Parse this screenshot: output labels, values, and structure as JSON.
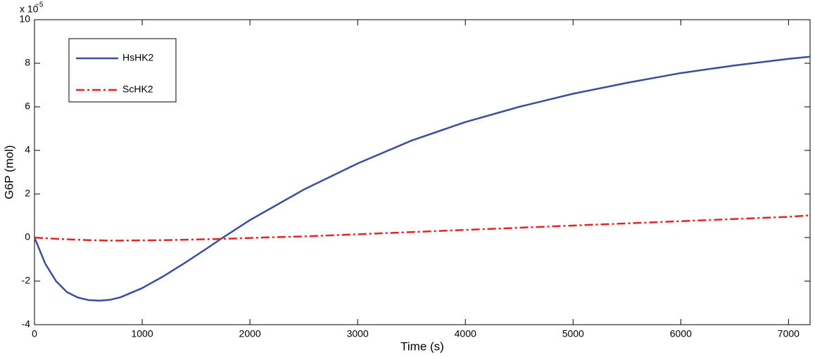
{
  "chart_data": {
    "type": "line",
    "x_label": "Time (s)",
    "y_label": "G6P (mol)",
    "y_multiplier": "x 10",
    "y_exponent": "−5",
    "x": [
      0,
      100,
      200,
      300,
      400,
      500,
      600,
      700,
      800,
      1000,
      1200,
      1400,
      1600,
      1750,
      2000,
      2250,
      2500,
      3000,
      3500,
      4000,
      4500,
      5000,
      5500,
      6000,
      6500,
      7000,
      7200
    ],
    "series": [
      {
        "name": "HsHK2",
        "color": "#3a4da0",
        "dash": "solid",
        "values": [
          0,
          -1.2,
          -2.0,
          -2.5,
          -2.75,
          -2.87,
          -2.9,
          -2.86,
          -2.74,
          -2.32,
          -1.77,
          -1.15,
          -0.5,
          0,
          0.8,
          1.5,
          2.2,
          3.4,
          4.45,
          5.3,
          6.0,
          6.6,
          7.1,
          7.55,
          7.9,
          8.2,
          8.3
        ]
      },
      {
        "name": "ScHK2",
        "color": "#e8231e",
        "dash": "dashdot",
        "values": [
          0,
          -0.03,
          -0.06,
          -0.08,
          -0.1,
          -0.12,
          -0.13,
          -0.14,
          -0.14,
          -0.13,
          -0.12,
          -0.1,
          -0.08,
          -0.06,
          -0.02,
          0.02,
          0.05,
          0.15,
          0.25,
          0.35,
          0.45,
          0.55,
          0.65,
          0.75,
          0.85,
          0.95,
          1.02
        ]
      }
    ],
    "xlim": [
      0,
      7200
    ],
    "xticks": [
      0,
      1000,
      2000,
      3000,
      4000,
      5000,
      6000,
      7000
    ],
    "ylim": [
      -4,
      10
    ],
    "yticks": [
      -4,
      -2,
      0,
      2,
      4,
      6,
      8,
      10
    ],
    "legend": "upper left"
  }
}
